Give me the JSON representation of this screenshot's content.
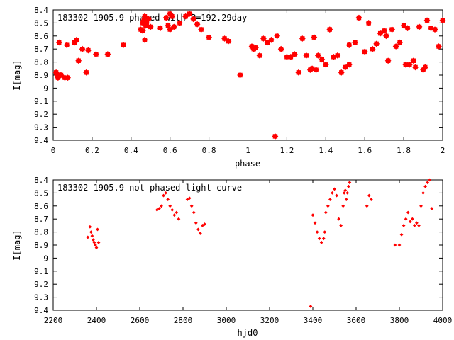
{
  "chart_data": [
    {
      "type": "scatter",
      "title": "183302-1905.9 phased with P=192.29day",
      "xlabel": "phase",
      "ylabel": "I[mag]",
      "xlim": [
        0,
        2
      ],
      "ylim": [
        8.4,
        9.4
      ],
      "y_inverted": true,
      "grid": false,
      "color": "#ff0000",
      "marker": "filled-star",
      "xticks": [
        "0",
        "0.2",
        "0.4",
        "0.6",
        "0.8",
        "1",
        "1.2",
        "1.4",
        "1.6",
        "1.8",
        "2"
      ],
      "yticks": [
        "8.4",
        "8.5",
        "8.6",
        "8.7",
        "8.8",
        "8.9",
        "9",
        "9.1",
        "9.2",
        "9.3",
        "9.4"
      ],
      "x": [
        0.015,
        0.02,
        0.025,
        0.03,
        0.035,
        0.04,
        0.06,
        0.07,
        0.075,
        0.11,
        0.12,
        0.13,
        0.15,
        0.17,
        0.18,
        0.22,
        0.28,
        0.36,
        0.45,
        0.46,
        0.465,
        0.47,
        0.475,
        0.48,
        0.49,
        0.5,
        0.47,
        0.46,
        0.55,
        0.58,
        0.59,
        0.6,
        0.61,
        0.62,
        0.6,
        0.65,
        0.68,
        0.7,
        0.72,
        0.74,
        0.76,
        0.8,
        0.88,
        0.9,
        0.96,
        1.02,
        1.04,
        1.06,
        1.08,
        1.1,
        1.12,
        1.15,
        1.17,
        1.2,
        1.22,
        1.24,
        1.26,
        1.28,
        1.3,
        1.32,
        1.34,
        1.36,
        1.38,
        1.4,
        1.42,
        1.44,
        1.46,
        1.48,
        1.5,
        1.52,
        1.55,
        1.57,
        1.6,
        1.62,
        1.64,
        1.66,
        1.68,
        1.7,
        1.71,
        1.72,
        1.74,
        1.76,
        1.78,
        1.8,
        1.81,
        1.82,
        1.83,
        1.85,
        1.86,
        1.88,
        1.9,
        1.91,
        1.92,
        1.94,
        1.96,
        1.98,
        2.0,
        1.14,
        1.35,
        1.33,
        1.52,
        1.03
      ],
      "y": [
        8.88,
        8.9,
        8.92,
        8.65,
        8.9,
        8.9,
        8.92,
        8.67,
        8.92,
        8.65,
        8.63,
        8.79,
        8.7,
        8.88,
        8.71,
        8.74,
        8.74,
        8.67,
        8.55,
        8.5,
        8.48,
        8.45,
        8.52,
        8.5,
        8.47,
        8.53,
        8.63,
        8.56,
        8.54,
        8.46,
        8.52,
        8.55,
        8.45,
        8.53,
        8.43,
        8.5,
        8.45,
        8.43,
        8.47,
        8.51,
        8.55,
        8.61,
        8.62,
        8.64,
        8.9,
        8.68,
        8.69,
        8.75,
        8.62,
        8.65,
        8.63,
        8.6,
        8.7,
        8.76,
        8.76,
        8.74,
        8.88,
        8.62,
        8.75,
        8.86,
        8.61,
        8.75,
        8.78,
        8.82,
        8.55,
        8.76,
        8.75,
        8.88,
        8.84,
        8.67,
        8.65,
        8.46,
        8.72,
        8.5,
        8.7,
        8.66,
        8.58,
        8.56,
        8.6,
        8.79,
        8.55,
        8.68,
        8.65,
        8.52,
        8.82,
        8.54,
        8.82,
        8.79,
        8.84,
        8.53,
        8.86,
        8.84,
        8.48,
        8.54,
        8.55,
        8.68,
        8.48,
        9.37,
        8.86,
        8.85,
        8.82,
        8.7
      ]
    },
    {
      "type": "scatter",
      "title": "183302-1905.9 not phased light curve",
      "xlabel": "hjd0",
      "ylabel": "I[mag]",
      "xlim": [
        2200,
        4000
      ],
      "ylim": [
        8.4,
        9.4
      ],
      "y_inverted": true,
      "grid": false,
      "color": "#ff0000",
      "marker": "small-diamond",
      "xticks": [
        "2200",
        "2400",
        "2600",
        "2800",
        "3000",
        "3200",
        "3400",
        "3600",
        "3800",
        "4000"
      ],
      "yticks": [
        "8.4",
        "8.5",
        "8.6",
        "8.7",
        "8.8",
        "8.9",
        "9",
        "9.1",
        "9.2",
        "9.3",
        "9.4"
      ],
      "x": [
        2360,
        2370,
        2375,
        2380,
        2385,
        2390,
        2395,
        2400,
        2405,
        2410,
        2680,
        2690,
        2700,
        2710,
        2720,
        2730,
        2740,
        2750,
        2760,
        2770,
        2780,
        2820,
        2830,
        2840,
        2850,
        2860,
        2870,
        2880,
        2890,
        2900,
        3390,
        3400,
        3410,
        3420,
        3430,
        3440,
        3450,
        3455,
        3460,
        3470,
        3480,
        3490,
        3500,
        3510,
        3520,
        3530,
        3540,
        3545,
        3550,
        3555,
        3560,
        3565,
        3570,
        3650,
        3660,
        3670,
        3780,
        3800,
        3810,
        3820,
        3830,
        3840,
        3850,
        3860,
        3870,
        3880,
        3890,
        3900,
        3910,
        3920,
        3930,
        3940,
        3950
      ],
      "y": [
        8.84,
        8.76,
        8.8,
        8.83,
        8.86,
        8.88,
        8.9,
        8.92,
        8.78,
        8.88,
        8.63,
        8.62,
        8.6,
        8.52,
        8.5,
        8.55,
        8.6,
        8.63,
        8.67,
        8.65,
        8.7,
        8.55,
        8.54,
        8.6,
        8.65,
        8.73,
        8.78,
        8.81,
        8.75,
        8.74,
        9.37,
        8.67,
        8.73,
        8.8,
        8.85,
        8.88,
        8.85,
        8.8,
        8.65,
        8.6,
        8.55,
        8.5,
        8.47,
        8.52,
        8.7,
        8.75,
        8.6,
        8.5,
        8.48,
        8.55,
        8.5,
        8.45,
        8.42,
        8.6,
        8.52,
        8.55,
        8.9,
        8.9,
        8.82,
        8.75,
        8.7,
        8.65,
        8.72,
        8.7,
        8.75,
        8.73,
        8.75,
        8.6,
        8.5,
        8.45,
        8.42,
        8.4,
        8.62
      ]
    }
  ]
}
